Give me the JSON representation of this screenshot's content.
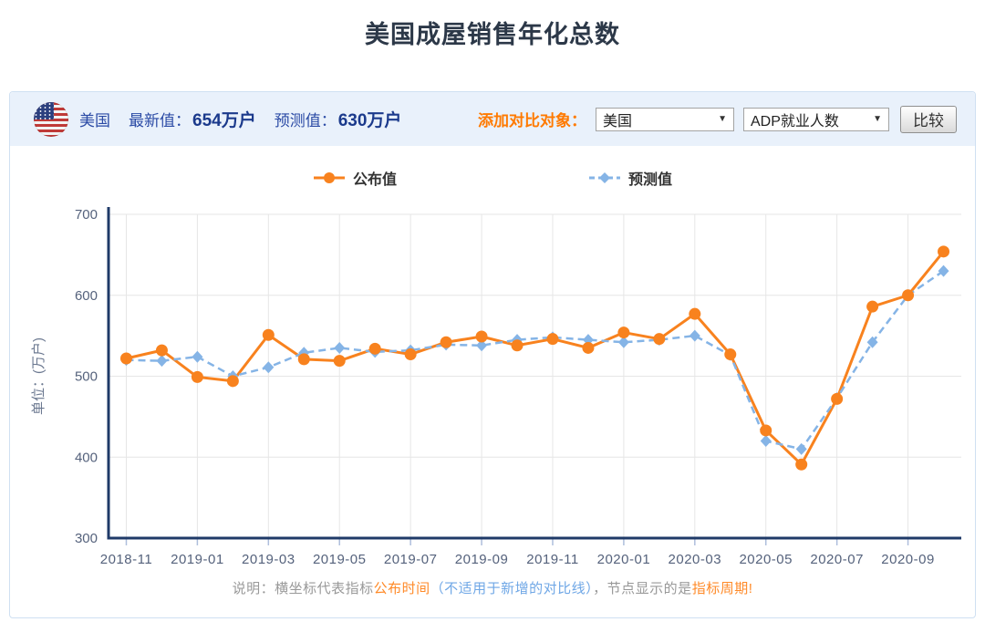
{
  "page": {
    "title": "美国成屋销售年化总数"
  },
  "header": {
    "country": "美国",
    "latest_label": "最新值：",
    "latest_value": "654万户",
    "forecast_label": "预测值：",
    "forecast_value": "630万户",
    "compare_label": "添加对比对象：",
    "select_country_value": "美国",
    "select_indicator_value": "ADP就业人数",
    "compare_button": "比较"
  },
  "colors": {
    "accent_orange": "#ff7a00",
    "series_published": "#f8821e",
    "series_forecast": "#85b4e6",
    "axis_line": "#1f3a68",
    "grid_line": "#e6e6e6",
    "tick_mark": "#aebedc",
    "tick_label": "#55627c",
    "note_gray": "#999999",
    "note_orange": "#ff8a28",
    "note_blue": "#6fa7e6"
  },
  "note": {
    "segments": [
      {
        "text": "说明：横坐标代表指标",
        "color": "#999999"
      },
      {
        "text": "公布时间",
        "color": "#ff8a28"
      },
      {
        "text": "（不适用于新增的对比线）",
        "color": "#6fa7e6"
      },
      {
        "text": "，节点显示的是",
        "color": "#999999"
      },
      {
        "text": "指标周期!",
        "color": "#ff8a28"
      }
    ]
  },
  "chart_data": {
    "type": "line",
    "title": "美国成屋销售年化总数",
    "ylabel": "单位：(万户)",
    "ylim": [
      300,
      700
    ],
    "yticks": [
      300,
      400,
      500,
      600,
      700
    ],
    "grid": true,
    "legend_position": "top",
    "x": [
      "2018-11",
      "2018-12",
      "2019-01",
      "2019-02",
      "2019-03",
      "2019-04",
      "2019-05",
      "2019-06",
      "2019-07",
      "2019-08",
      "2019-09",
      "2019-10",
      "2019-11",
      "2019-12",
      "2020-01",
      "2020-02",
      "2020-03",
      "2020-04",
      "2020-05",
      "2020-06",
      "2020-07",
      "2020-08",
      "2020-09",
      "2020-10"
    ],
    "x_tick_labels": [
      "2018-11",
      "2019-01",
      "2019-03",
      "2019-05",
      "2019-07",
      "2019-09",
      "2019-11",
      "2020-01",
      "2020-03",
      "2020-05",
      "2020-07",
      "2020-09"
    ],
    "x_axis_note": "横坐标为指标公布时间",
    "series": [
      {
        "name": "公布值",
        "color": "#f8821e",
        "line_style": "solid",
        "marker": "circle",
        "values": [
          522,
          532,
          499,
          494,
          551,
          521,
          519,
          534,
          527,
          542,
          549,
          538,
          546,
          535,
          554,
          546,
          577,
          527,
          433,
          391,
          472,
          586,
          600,
          654
        ]
      },
      {
        "name": "预测值",
        "color": "#85b4e6",
        "line_style": "dashed",
        "marker": "diamond",
        "values": [
          520,
          519,
          524,
          500,
          511,
          529,
          535,
          530,
          532,
          539,
          538,
          545,
          548,
          545,
          542,
          545,
          550,
          526,
          420,
          410,
          473,
          542,
          600,
          630
        ]
      }
    ]
  }
}
